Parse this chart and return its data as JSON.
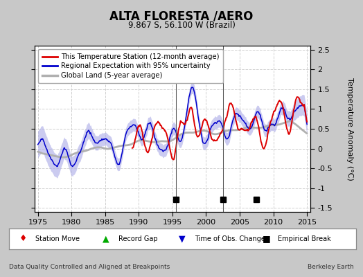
{
  "title": "ALTA FLORESTA /AERO",
  "subtitle": "9.867 S, 56.100 W (Brazil)",
  "ylabel": "Temperature Anomaly (°C)",
  "footer_left": "Data Quality Controlled and Aligned at Breakpoints",
  "footer_right": "Berkeley Earth",
  "xlim": [
    1974.5,
    2015.5
  ],
  "ylim": [
    -1.6,
    2.6
  ],
  "yticks": [
    -1.5,
    -1.0,
    -0.5,
    0.0,
    0.5,
    1.0,
    1.5,
    2.0,
    2.5
  ],
  "xticks": [
    1975,
    1980,
    1985,
    1990,
    1995,
    2000,
    2005,
    2010,
    2015
  ],
  "empirical_breaks": [
    1995.5,
    2002.5,
    2007.5
  ],
  "vertical_lines": [
    1995.5,
    2002.5
  ],
  "fig_bg_color": "#c8c8c8",
  "plot_bg_color": "#ffffff",
  "grid_color": "#d0d0d0",
  "red_color": "#dd0000",
  "blue_color": "#0000cc",
  "blue_fill_color": "#b0b0e8",
  "gray_color": "#b0b0b0",
  "legend_entries": [
    "This Temperature Station (12-month average)",
    "Regional Expectation with 95% uncertainty",
    "Global Land (5-year average)"
  ]
}
